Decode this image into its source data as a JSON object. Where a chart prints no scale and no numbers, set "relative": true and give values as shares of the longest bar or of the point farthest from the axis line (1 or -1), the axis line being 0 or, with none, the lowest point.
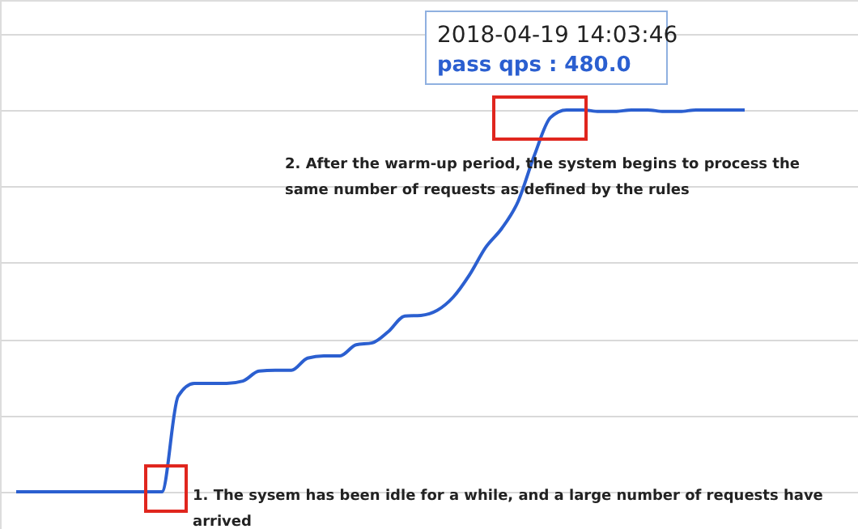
{
  "chart_data": {
    "type": "line",
    "relative": true,
    "grid": "y",
    "categories": [
      null,
      null,
      null,
      null,
      null,
      null,
      null,
      null,
      null,
      null,
      null,
      null,
      null,
      null,
      null,
      null,
      null,
      null,
      null,
      null,
      null,
      null,
      null,
      null,
      null,
      null,
      null,
      null,
      null,
      null,
      null,
      null,
      null,
      null,
      null,
      null,
      null,
      null,
      null,
      null,
      null,
      null,
      null,
      null,
      null,
      null
    ],
    "series": [
      {
        "color": "#2b5fd0",
        "values": [
          0,
          0,
          0,
          0,
          0,
          0,
          0,
          0,
          0,
          0,
          0.25,
          0.284,
          0.284,
          0.284,
          0.29,
          0.316,
          0.318,
          0.318,
          0.35,
          0.356,
          0.356,
          0.385,
          0.39,
          0.42,
          0.46,
          0.462,
          0.475,
          0.51,
          0.568,
          0.64,
          0.69,
          0.76,
          0.88,
          0.98,
          1,
          1,
          0.996,
          0.996,
          1,
          1,
          0.996,
          0.996,
          1,
          1,
          1,
          1
        ]
      }
    ],
    "annotations": [
      "2018-04-19 14:03:46",
      "pass qps : 480.0",
      "2. After the warm-up period, the system begins to process the same number of requests as defined by the rules",
      "1. The sysem has been idle for a while, and a large number of requests have arrived"
    ]
  }
}
